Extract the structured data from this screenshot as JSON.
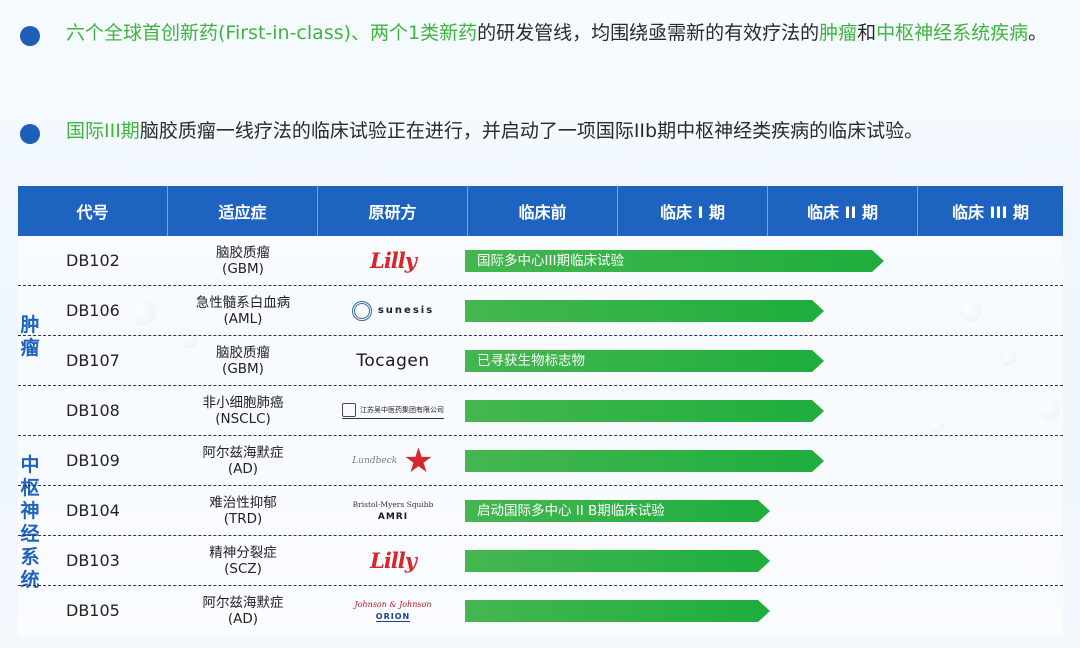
{
  "bullets": [
    {
      "segments": [
        {
          "text": "六个全球首创新药(First-in-class)、两个1类新药",
          "highlight": true
        },
        {
          "text": "的研发管线，均围绕亟需新的有效疗法的",
          "highlight": false
        },
        {
          "text": "肿瘤",
          "highlight": true
        },
        {
          "text": "和",
          "highlight": false
        },
        {
          "text": "中枢神经系统疾病",
          "highlight": true
        },
        {
          "text": "。",
          "highlight": false
        }
      ]
    },
    {
      "segments": [
        {
          "text": "国际III期",
          "highlight": true
        },
        {
          "text": "脑胶质瘤一线疗法的临床试验正在进行，并启动了一项国际IIb期中枢神经类疾病的临床试验。",
          "highlight": false
        }
      ]
    }
  ],
  "table": {
    "headers": [
      "代号",
      "适应症",
      "原研方",
      "临床前",
      "临床 I 期",
      "临床 II 期",
      "临床 III 期"
    ],
    "groups": [
      {
        "label": "肿瘤"
      },
      {
        "label": "中枢神经系统"
      }
    ],
    "rows": [
      {
        "code": "DB102",
        "indication": "脑胶质瘤",
        "indication_abbr": "(GBM)",
        "originator": "Lilly",
        "logo": "lilly-logo",
        "progress": 0.7,
        "bar_label": "国际多中心III期临床试验"
      },
      {
        "code": "DB106",
        "indication": "急性髓系白血病",
        "indication_abbr": "(AML)",
        "originator": "sunesis",
        "logo": "sunesis-logo",
        "progress": 0.6,
        "bar_label": ""
      },
      {
        "code": "DB107",
        "indication": "脑胶质瘤",
        "indication_abbr": "(GBM)",
        "originator": "Tocagen",
        "logo": "tocagen-logo",
        "progress": 0.6,
        "bar_label": "已寻获生物标志物"
      },
      {
        "code": "DB108",
        "indication": "非小细胞肺癌",
        "indication_abbr": "(NSCLC)",
        "originator": "江苏吴中医药集团有限公司",
        "logo": "jiangsu-wuzhong-logo",
        "progress": 0.6,
        "bar_label": ""
      },
      {
        "code": "DB109",
        "indication": "阿尔兹海默症",
        "indication_abbr": "(AD)",
        "originator": "Lundbeck",
        "logo": "lundbeck-logo",
        "progress": 0.6,
        "bar_label": ""
      },
      {
        "code": "DB104",
        "indication": "难治性抑郁",
        "indication_abbr": "(TRD)",
        "originator": [
          "Bristol-Myers Squibb",
          "AMRI"
        ],
        "logo": "bms-amri-logo",
        "progress": 0.51,
        "bar_label": "启动国际多中心 II B期临床试验"
      },
      {
        "code": "DB103",
        "indication": "精神分裂症",
        "indication_abbr": "(SCZ)",
        "originator": "Lilly",
        "logo": "lilly-logo",
        "progress": 0.51,
        "bar_label": ""
      },
      {
        "code": "DB105",
        "indication": "阿尔兹海默症",
        "indication_abbr": "(AD)",
        "originator": [
          "Johnson & Johnson",
          "ORION"
        ],
        "logo": "jnj-orion-logo",
        "progress": 0.51,
        "bar_label": ""
      }
    ]
  },
  "colors": {
    "header_bg": "#1f63c0",
    "highlight_green": "#3fb43f",
    "bar_green": "#1fae3e",
    "bullet_blue": "#1e5eb8"
  }
}
